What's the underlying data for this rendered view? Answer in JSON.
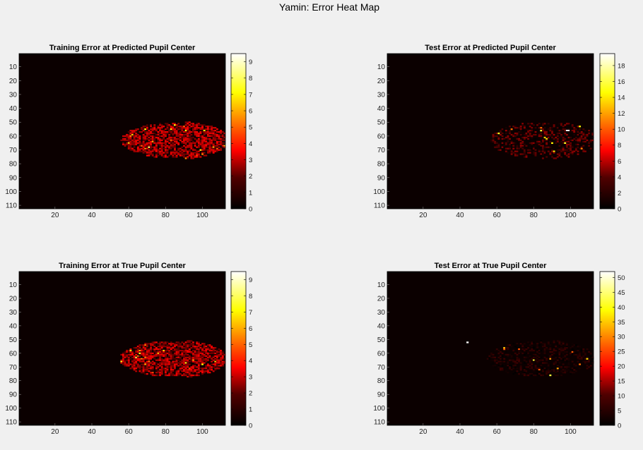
{
  "figure": {
    "title": "Yamin: Error Heat Map"
  },
  "chart_data": [
    {
      "type": "heatmap",
      "title": "Training Error at Predicted Pupil Center",
      "x_ticks": [
        20,
        40,
        60,
        80,
        100
      ],
      "y_ticks": [
        10,
        20,
        30,
        40,
        50,
        60,
        70,
        80,
        90,
        100,
        110
      ],
      "xlim": [
        1,
        112
      ],
      "ylim": [
        1,
        112
      ],
      "colormap": "hot",
      "colorbar": {
        "min": 0,
        "max": 9.5,
        "ticks": [
          0,
          1,
          2,
          3,
          4,
          5,
          6,
          7,
          8,
          9
        ]
      }
    },
    {
      "type": "heatmap",
      "title": "Test Error at Predicted Pupil Center",
      "x_ticks": [
        20,
        40,
        60,
        80,
        100
      ],
      "y_ticks": [
        10,
        20,
        30,
        40,
        50,
        60,
        70,
        80,
        90,
        100,
        110
      ],
      "xlim": [
        1,
        112
      ],
      "ylim": [
        1,
        112
      ],
      "colormap": "hot",
      "colorbar": {
        "min": 0,
        "max": 19.5,
        "ticks": [
          0,
          2,
          4,
          6,
          8,
          10,
          12,
          14,
          16,
          18
        ]
      }
    },
    {
      "type": "heatmap",
      "title": "Training Error at True Pupil Center",
      "x_ticks": [
        20,
        40,
        60,
        80,
        100
      ],
      "y_ticks": [
        10,
        20,
        30,
        40,
        50,
        60,
        70,
        80,
        90,
        100,
        110
      ],
      "xlim": [
        1,
        112
      ],
      "ylim": [
        1,
        112
      ],
      "colormap": "hot",
      "colorbar": {
        "min": 0,
        "max": 9.5,
        "ticks": [
          0,
          1,
          2,
          3,
          4,
          5,
          6,
          7,
          8,
          9
        ]
      }
    },
    {
      "type": "heatmap",
      "title": "Test Error at True Pupil Center",
      "x_ticks": [
        20,
        40,
        60,
        80,
        100
      ],
      "y_ticks": [
        10,
        20,
        30,
        40,
        50,
        60,
        70,
        80,
        90,
        100,
        110
      ],
      "xlim": [
        1,
        112
      ],
      "ylim": [
        1,
        112
      ],
      "colormap": "hot",
      "colorbar": {
        "min": 0,
        "max": 52,
        "ticks": [
          0,
          5,
          10,
          15,
          20,
          25,
          30,
          35,
          40,
          45,
          50
        ]
      }
    }
  ]
}
